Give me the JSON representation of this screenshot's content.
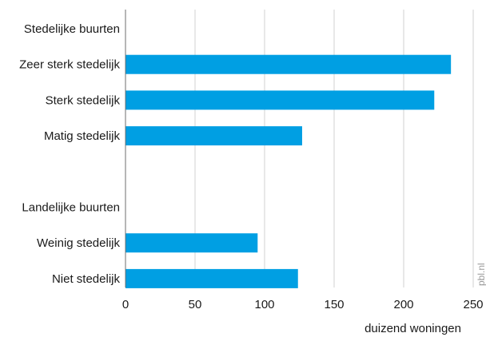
{
  "chart_data": {
    "type": "bar",
    "orientation": "horizontal",
    "xlabel": "duizend woningen",
    "xlim": [
      0,
      250
    ],
    "xticks": [
      0,
      50,
      100,
      150,
      200,
      250
    ],
    "grid": true,
    "bar_color": "#009fe3",
    "rows": [
      {
        "label": "Stedelijke buurten",
        "value": null
      },
      {
        "label": "Zeer sterk stedelijk",
        "value": 234
      },
      {
        "label": "Sterk stedelijk",
        "value": 222
      },
      {
        "label": "Matig stedelijk",
        "value": 127
      },
      {
        "label": "",
        "value": null
      },
      {
        "label": "Landelijke buurten",
        "value": null
      },
      {
        "label": "Weinig stedelijk",
        "value": 95
      },
      {
        "label": "Niet stedelijk",
        "value": 124
      }
    ],
    "source": "pbl.nl"
  }
}
